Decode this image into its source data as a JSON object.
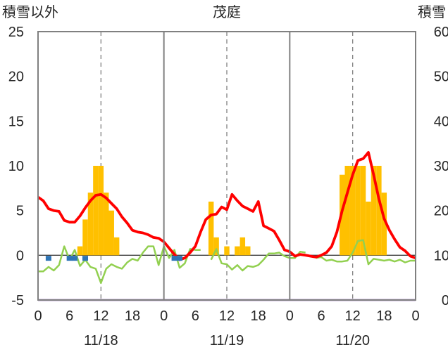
{
  "chart_data": {
    "type": "bar+line",
    "title": "茂庭",
    "left_axis_label": "積雪以外",
    "right_axis_label": "積雪",
    "left_ylim": [
      -5,
      25
    ],
    "left_yticks": [
      -5,
      0,
      5,
      10,
      15,
      20,
      25
    ],
    "right_ylim": [
      0,
      60
    ],
    "right_yticks": [
      0,
      10,
      20,
      30,
      40,
      50,
      60
    ],
    "x_range_hours": [
      0,
      72
    ],
    "x_tick_labels": [
      "0",
      "6",
      "12",
      "18",
      "0",
      "6",
      "12",
      "18",
      "0",
      "6",
      "12",
      "18",
      "0"
    ],
    "date_labels": [
      "11/18",
      "11/19",
      "11/20"
    ],
    "grid": "vertical dashed every 6h at 12h; solid day separators",
    "colors": {
      "bars": "#FFC000",
      "red_line": "#FF0000",
      "green_line": "#92D050",
      "blue_markers": "#2E75B6",
      "purple_line": "#7030A0",
      "frame": "#808080"
    },
    "bars": [
      {
        "h": 8,
        "v": 1
      },
      {
        "h": 9,
        "v": 4
      },
      {
        "h": 10,
        "v": 7
      },
      {
        "h": 11,
        "v": 10
      },
      {
        "h": 12,
        "v": 10
      },
      {
        "h": 13,
        "v": 7
      },
      {
        "h": 14,
        "v": 5
      },
      {
        "h": 15,
        "v": 2
      },
      {
        "h": 33,
        "v": 6
      },
      {
        "h": 34,
        "v": 2
      },
      {
        "h": 36,
        "v": 1
      },
      {
        "h": 38,
        "v": 1
      },
      {
        "h": 39,
        "v": 2
      },
      {
        "h": 40,
        "v": 1
      },
      {
        "h": 58,
        "v": 9
      },
      {
        "h": 59,
        "v": 10
      },
      {
        "h": 60,
        "v": 10
      },
      {
        "h": 61,
        "v": 10
      },
      {
        "h": 62,
        "v": 10
      },
      {
        "h": 63,
        "v": 6
      },
      {
        "h": 64,
        "v": 10
      },
      {
        "h": 65,
        "v": 10
      },
      {
        "h": 66,
        "v": 7
      }
    ],
    "red_series": [
      [
        0,
        6.5
      ],
      [
        1,
        6.1
      ],
      [
        2,
        5.2
      ],
      [
        3,
        5.0
      ],
      [
        4,
        4.9
      ],
      [
        5,
        3.9
      ],
      [
        6,
        3.7
      ],
      [
        7,
        3.7
      ],
      [
        8,
        4.4
      ],
      [
        9,
        5.3
      ],
      [
        10,
        6.1
      ],
      [
        11,
        6.7
      ],
      [
        12,
        6.8
      ],
      [
        13,
        6.4
      ],
      [
        14,
        5.8
      ],
      [
        15,
        5.2
      ],
      [
        16,
        4.3
      ],
      [
        17,
        3.6
      ],
      [
        18,
        2.8
      ],
      [
        19,
        2.6
      ],
      [
        20,
        2.5
      ],
      [
        21,
        2.3
      ],
      [
        22,
        2.0
      ],
      [
        23,
        1.9
      ],
      [
        24,
        1.5
      ],
      [
        25,
        0.8
      ],
      [
        26,
        0.1
      ],
      [
        27,
        -0.5
      ],
      [
        28,
        -0.3
      ],
      [
        29,
        0.3
      ],
      [
        30,
        1.0
      ],
      [
        31,
        2.6
      ],
      [
        32,
        4.0
      ],
      [
        33,
        4.5
      ],
      [
        34,
        4.6
      ],
      [
        35,
        5.4
      ],
      [
        36,
        5.1
      ],
      [
        37,
        6.8
      ],
      [
        38,
        6.1
      ],
      [
        39,
        5.5
      ],
      [
        40,
        5.2
      ],
      [
        41,
        4.9
      ],
      [
        42,
        6.0
      ],
      [
        43,
        3.3
      ],
      [
        44,
        3.0
      ],
      [
        45,
        2.7
      ],
      [
        46,
        1.7
      ],
      [
        47,
        0.6
      ],
      [
        48,
        0.4
      ],
      [
        49,
        -0.1
      ],
      [
        50,
        0.1
      ],
      [
        51,
        0.0
      ],
      [
        52,
        -0.1
      ],
      [
        53,
        -0.2
      ],
      [
        54,
        0.0
      ],
      [
        55,
        0.3
      ],
      [
        56,
        1.0
      ],
      [
        57,
        2.6
      ],
      [
        58,
        5.0
      ],
      [
        59,
        7.0
      ],
      [
        60,
        9.0
      ],
      [
        61,
        10.6
      ],
      [
        62,
        10.8
      ],
      [
        63,
        11.5
      ],
      [
        64,
        9.0
      ],
      [
        65,
        6.3
      ],
      [
        66,
        4.1
      ],
      [
        67,
        2.8
      ],
      [
        68,
        1.8
      ],
      [
        69,
        0.9
      ],
      [
        70,
        0.5
      ],
      [
        71,
        -0.1
      ],
      [
        72,
        -0.3
      ]
    ],
    "green_series": [
      [
        0,
        -1.8
      ],
      [
        1,
        -1.8
      ],
      [
        2,
        -1.3
      ],
      [
        3,
        -1.7
      ],
      [
        4,
        -1.1
      ],
      [
        5,
        1.0
      ],
      [
        6,
        -0.5
      ],
      [
        7,
        0.6
      ],
      [
        8,
        -1.2
      ],
      [
        9,
        -0.5
      ],
      [
        10,
        -1.3
      ],
      [
        11,
        -1.5
      ],
      [
        12,
        -3.1
      ],
      [
        13,
        -1.5
      ],
      [
        14,
        -1.0
      ],
      [
        15,
        -1.3
      ],
      [
        16,
        -1.5
      ],
      [
        17,
        -0.8
      ],
      [
        18,
        -0.4
      ],
      [
        19,
        -0.6
      ],
      [
        20,
        0.3
      ],
      [
        21,
        1.0
      ],
      [
        22,
        1.0
      ],
      [
        23,
        -1.1
      ],
      [
        24,
        1.0
      ],
      [
        25,
        -0.3
      ],
      [
        26,
        0.6
      ],
      [
        27,
        -1.4
      ],
      [
        28,
        -0.9
      ],
      [
        29,
        0.7
      ],
      [
        30,
        0.6
      ],
      [
        31,
        0.6
      ],
      [
        null,
        null
      ],
      [
        33,
        -0.5
      ],
      [
        34,
        0.7
      ],
      [
        35,
        -0.9
      ],
      [
        36,
        -1.0
      ],
      [
        37,
        -1.6
      ],
      [
        38,
        -1.1
      ],
      [
        39,
        -1.7
      ],
      [
        40,
        -1.2
      ],
      [
        41,
        -1.3
      ],
      [
        42,
        -1.1
      ],
      [
        43,
        -0.5
      ],
      [
        44,
        0.2
      ],
      [
        45,
        0.2
      ],
      [
        46,
        0.3
      ],
      [
        47,
        -0.1
      ],
      [
        48,
        -0.3
      ],
      [
        49,
        -0.3
      ],
      [
        50,
        0.4
      ],
      [
        51,
        0.3
      ],
      [
        null,
        null
      ],
      [
        53,
        -0.3
      ],
      [
        54,
        -0.2
      ],
      [
        55,
        -0.6
      ],
      [
        56,
        -0.5
      ],
      [
        57,
        -0.7
      ],
      [
        58,
        -0.7
      ],
      [
        59,
        -0.6
      ],
      [
        60,
        0.3
      ],
      [
        61,
        1.6
      ],
      [
        62,
        1.7
      ],
      [
        63,
        -1.0
      ],
      [
        64,
        -0.4
      ],
      [
        65,
        -0.5
      ],
      [
        66,
        -0.6
      ],
      [
        67,
        -0.5
      ],
      [
        68,
        -0.7
      ],
      [
        69,
        -0.5
      ],
      [
        70,
        -0.8
      ],
      [
        71,
        -0.6
      ],
      [
        72,
        -0.6
      ]
    ],
    "blue_markers": [
      {
        "h": 2,
        "v": -0.3
      },
      {
        "h": 6,
        "v": -0.3
      },
      {
        "h": 7,
        "v": -0.3
      },
      {
        "h": 9,
        "v": -0.3
      },
      {
        "h": 26,
        "v": -0.3
      },
      {
        "h": 27,
        "v": -0.3
      }
    ],
    "purple_series_value": -5
  }
}
